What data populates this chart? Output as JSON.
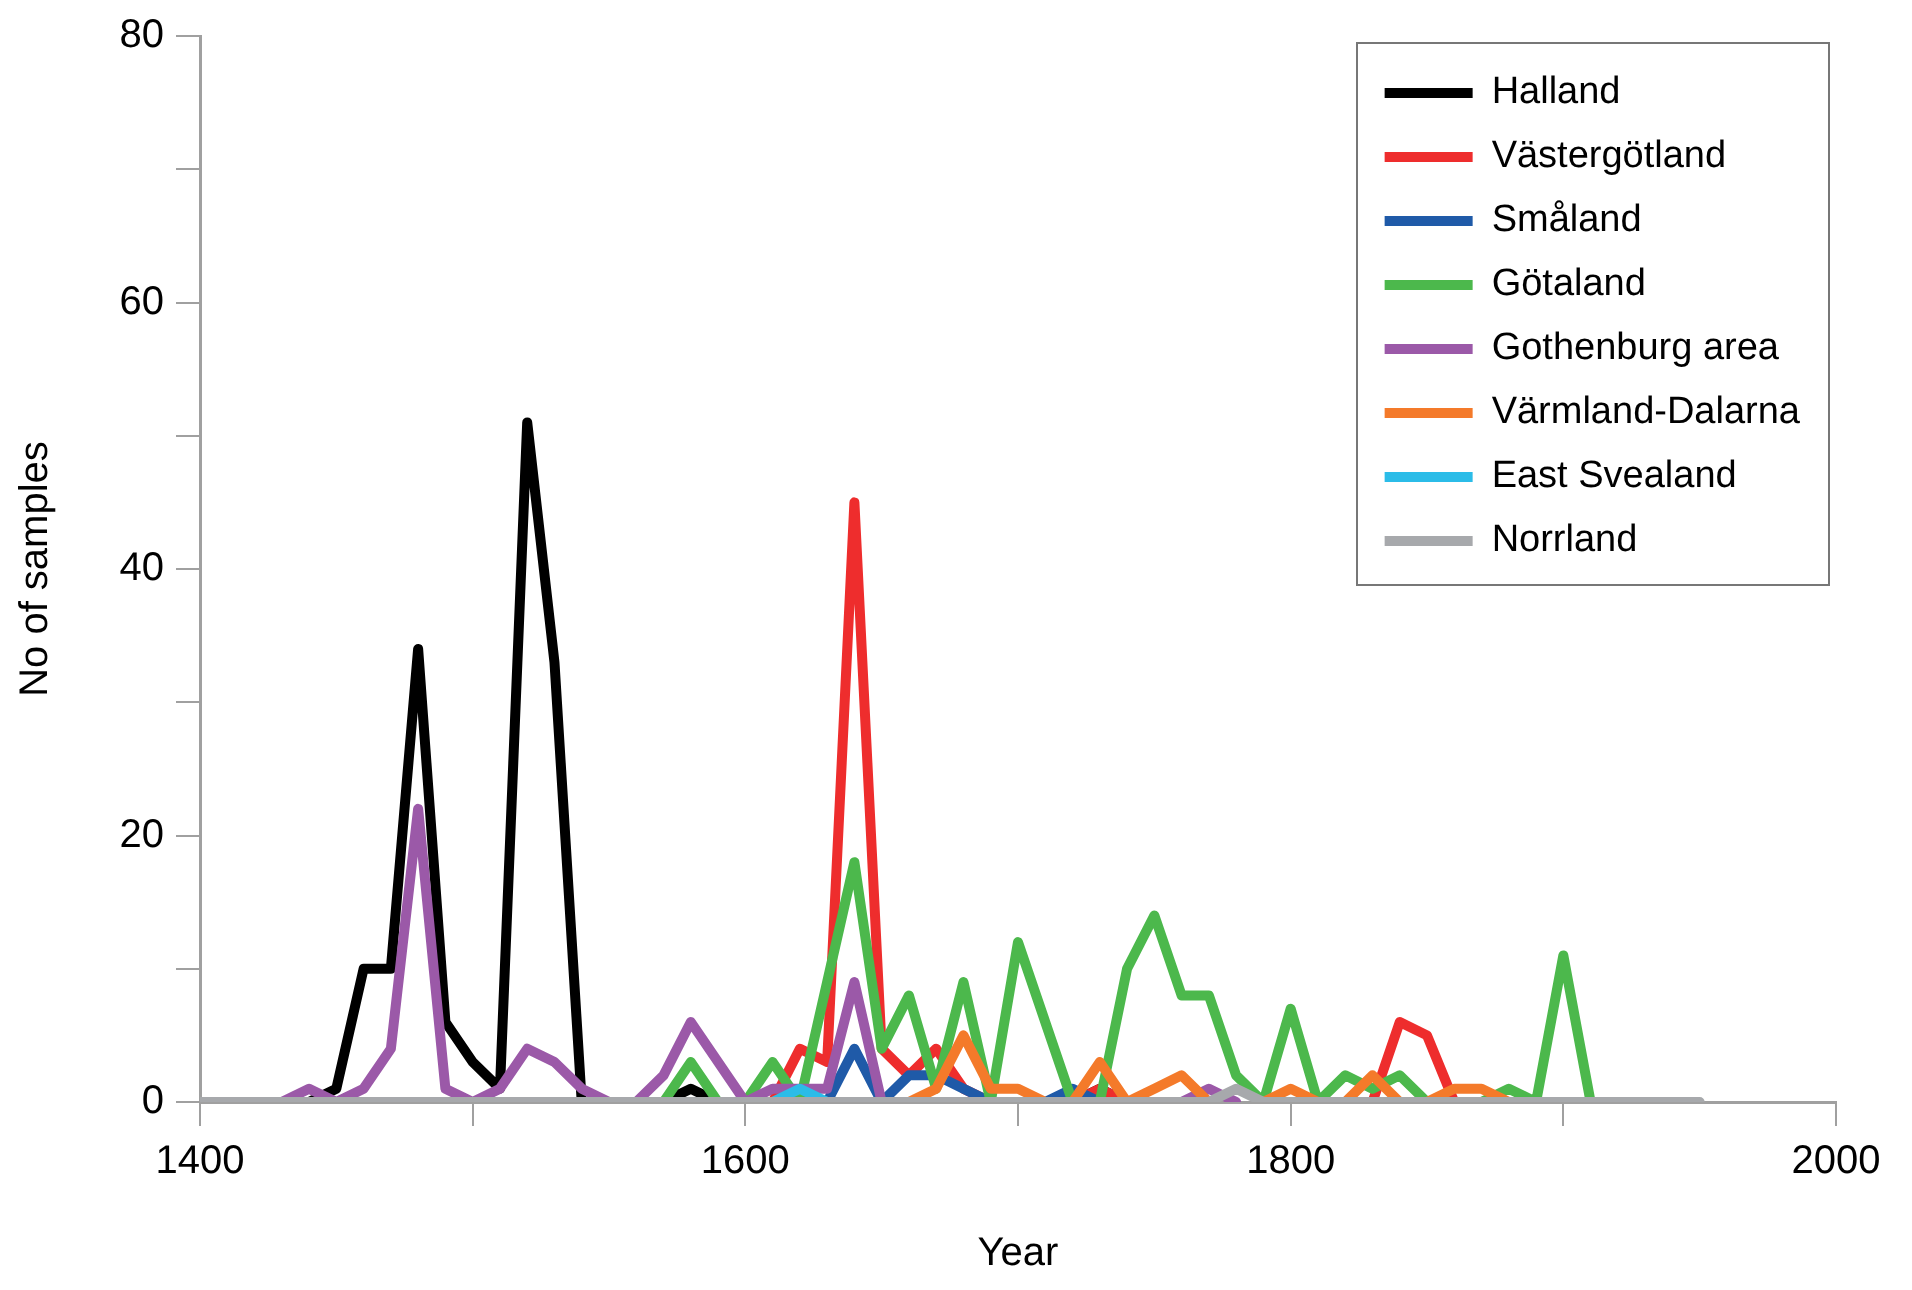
{
  "chart_data": {
    "type": "line",
    "xlabel": "Year",
    "ylabel": "No of samples",
    "x": [
      1400,
      1410,
      1420,
      1430,
      1440,
      1450,
      1460,
      1470,
      1480,
      1490,
      1500,
      1510,
      1520,
      1530,
      1540,
      1550,
      1560,
      1570,
      1580,
      1590,
      1600,
      1610,
      1620,
      1630,
      1640,
      1650,
      1660,
      1670,
      1680,
      1690,
      1700,
      1710,
      1720,
      1730,
      1740,
      1750,
      1760,
      1770,
      1780,
      1790,
      1800,
      1810,
      1820,
      1830,
      1840,
      1850,
      1860,
      1870,
      1880,
      1890,
      1900,
      1910,
      1920,
      1930,
      1940,
      1950
    ],
    "series": [
      {
        "name": "Halland",
        "color": "#000000",
        "values": [
          null,
          null,
          null,
          null,
          0,
          1,
          10,
          10,
          34,
          6,
          3,
          1,
          51,
          33,
          0,
          null,
          null,
          0,
          1,
          0,
          null,
          null,
          null,
          null,
          null,
          null,
          null,
          null,
          null,
          null,
          null,
          null,
          0,
          1,
          0,
          null,
          null,
          null,
          null,
          null,
          null,
          null,
          null,
          null,
          null,
          null,
          null,
          null,
          null,
          null,
          null,
          null,
          null,
          null,
          null,
          null
        ]
      },
      {
        "name": "Västergötland",
        "color": "#ee2d2d",
        "values": [
          null,
          null,
          null,
          null,
          null,
          null,
          null,
          null,
          null,
          null,
          null,
          null,
          null,
          null,
          null,
          null,
          null,
          null,
          null,
          null,
          null,
          0,
          4,
          3,
          45,
          4,
          2,
          4,
          1,
          0,
          null,
          null,
          0,
          1,
          0,
          null,
          null,
          null,
          null,
          null,
          null,
          null,
          null,
          0,
          6,
          5,
          0,
          null,
          null,
          null,
          null,
          null,
          null,
          null,
          null,
          null
        ]
      },
      {
        "name": "Småland",
        "color": "#1f5aa8",
        "values": [
          null,
          null,
          null,
          null,
          null,
          null,
          null,
          null,
          null,
          null,
          null,
          null,
          null,
          null,
          null,
          null,
          null,
          null,
          null,
          null,
          null,
          null,
          null,
          0,
          4,
          0,
          2,
          2,
          1,
          0,
          null,
          0,
          1,
          0,
          null,
          null,
          null,
          null,
          null,
          null,
          null,
          null,
          null,
          null,
          null,
          null,
          null,
          null,
          null,
          null,
          null,
          null,
          null,
          null,
          null,
          null
        ]
      },
      {
        "name": "Götaland",
        "color": "#4cb84c",
        "values": [
          null,
          null,
          null,
          null,
          null,
          null,
          null,
          null,
          null,
          null,
          null,
          null,
          null,
          null,
          null,
          null,
          null,
          0,
          3,
          0,
          0,
          3,
          0,
          9,
          18,
          4,
          8,
          1,
          9,
          0,
          12,
          6,
          0,
          0,
          10,
          14,
          8,
          8,
          2,
          0,
          7,
          0,
          2,
          1,
          2,
          0,
          null,
          0,
          1,
          0,
          11,
          0,
          null,
          null,
          null,
          null
        ]
      },
      {
        "name": "Gothenburg area",
        "color": "#9b59a8",
        "values": [
          null,
          null,
          null,
          0,
          1,
          0,
          1,
          4,
          22,
          1,
          0,
          1,
          4,
          3,
          1,
          0,
          0,
          2,
          6,
          3,
          0,
          1,
          1,
          1,
          9,
          0,
          null,
          null,
          null,
          null,
          null,
          null,
          null,
          null,
          null,
          null,
          0,
          1,
          0,
          null,
          null,
          null,
          null,
          null,
          null,
          null,
          null,
          null,
          null,
          null,
          null,
          null,
          null,
          null,
          null,
          null
        ]
      },
      {
        "name": "Värmland-Dalarna",
        "color": "#f47a2a",
        "values": [
          null,
          null,
          null,
          null,
          null,
          null,
          null,
          null,
          null,
          null,
          null,
          null,
          null,
          null,
          null,
          null,
          null,
          null,
          null,
          null,
          null,
          null,
          null,
          null,
          null,
          null,
          0,
          1,
          5,
          1,
          1,
          0,
          0,
          3,
          0,
          1,
          2,
          0,
          null,
          0,
          1,
          0,
          0,
          2,
          0,
          0,
          1,
          1,
          0,
          null,
          null,
          null,
          null,
          null,
          null,
          null
        ]
      },
      {
        "name": "East Svealand",
        "color": "#2bbce8",
        "values": [
          null,
          null,
          null,
          null,
          null,
          null,
          null,
          null,
          null,
          null,
          null,
          null,
          null,
          null,
          null,
          null,
          null,
          null,
          null,
          null,
          null,
          0,
          1,
          0,
          null,
          null,
          null,
          null,
          null,
          null,
          null,
          null,
          null,
          null,
          null,
          null,
          null,
          null,
          null,
          null,
          null,
          null,
          null,
          null,
          null,
          null,
          null,
          null,
          null,
          null,
          null,
          null,
          null,
          null,
          null,
          null
        ]
      },
      {
        "name": "Norrland",
        "color": "#a7a9ac",
        "values": [
          0,
          0,
          0,
          0,
          0,
          0,
          0,
          0,
          0,
          0,
          0,
          0,
          0,
          0,
          0,
          0,
          0,
          0,
          0,
          0,
          0,
          0,
          0,
          0,
          0,
          0,
          0,
          0,
          0,
          0,
          0,
          0,
          0,
          0,
          0,
          0,
          0,
          0,
          1,
          0,
          0,
          0,
          0,
          0,
          0,
          0,
          0,
          0,
          0,
          0,
          0,
          0,
          0,
          0,
          0,
          0
        ]
      }
    ],
    "xlim": [
      1400,
      2000
    ],
    "ylim": [
      0,
      80
    ],
    "xticks": [
      1400,
      {
        "value": 1500,
        "label": null
      },
      1600,
      {
        "value": 1700,
        "label": null
      },
      1800,
      {
        "value": 1900,
        "label": null
      },
      2000
    ],
    "yticks": [
      0,
      {
        "value": 10,
        "label": null
      },
      20,
      {
        "value": 30,
        "label": null
      },
      40,
      {
        "value": 50,
        "label": null
      },
      60,
      {
        "value": 70,
        "label": null
      },
      80
    ],
    "grid": false,
    "legend": "top right",
    "marker": "none",
    "line_style": "solid"
  }
}
